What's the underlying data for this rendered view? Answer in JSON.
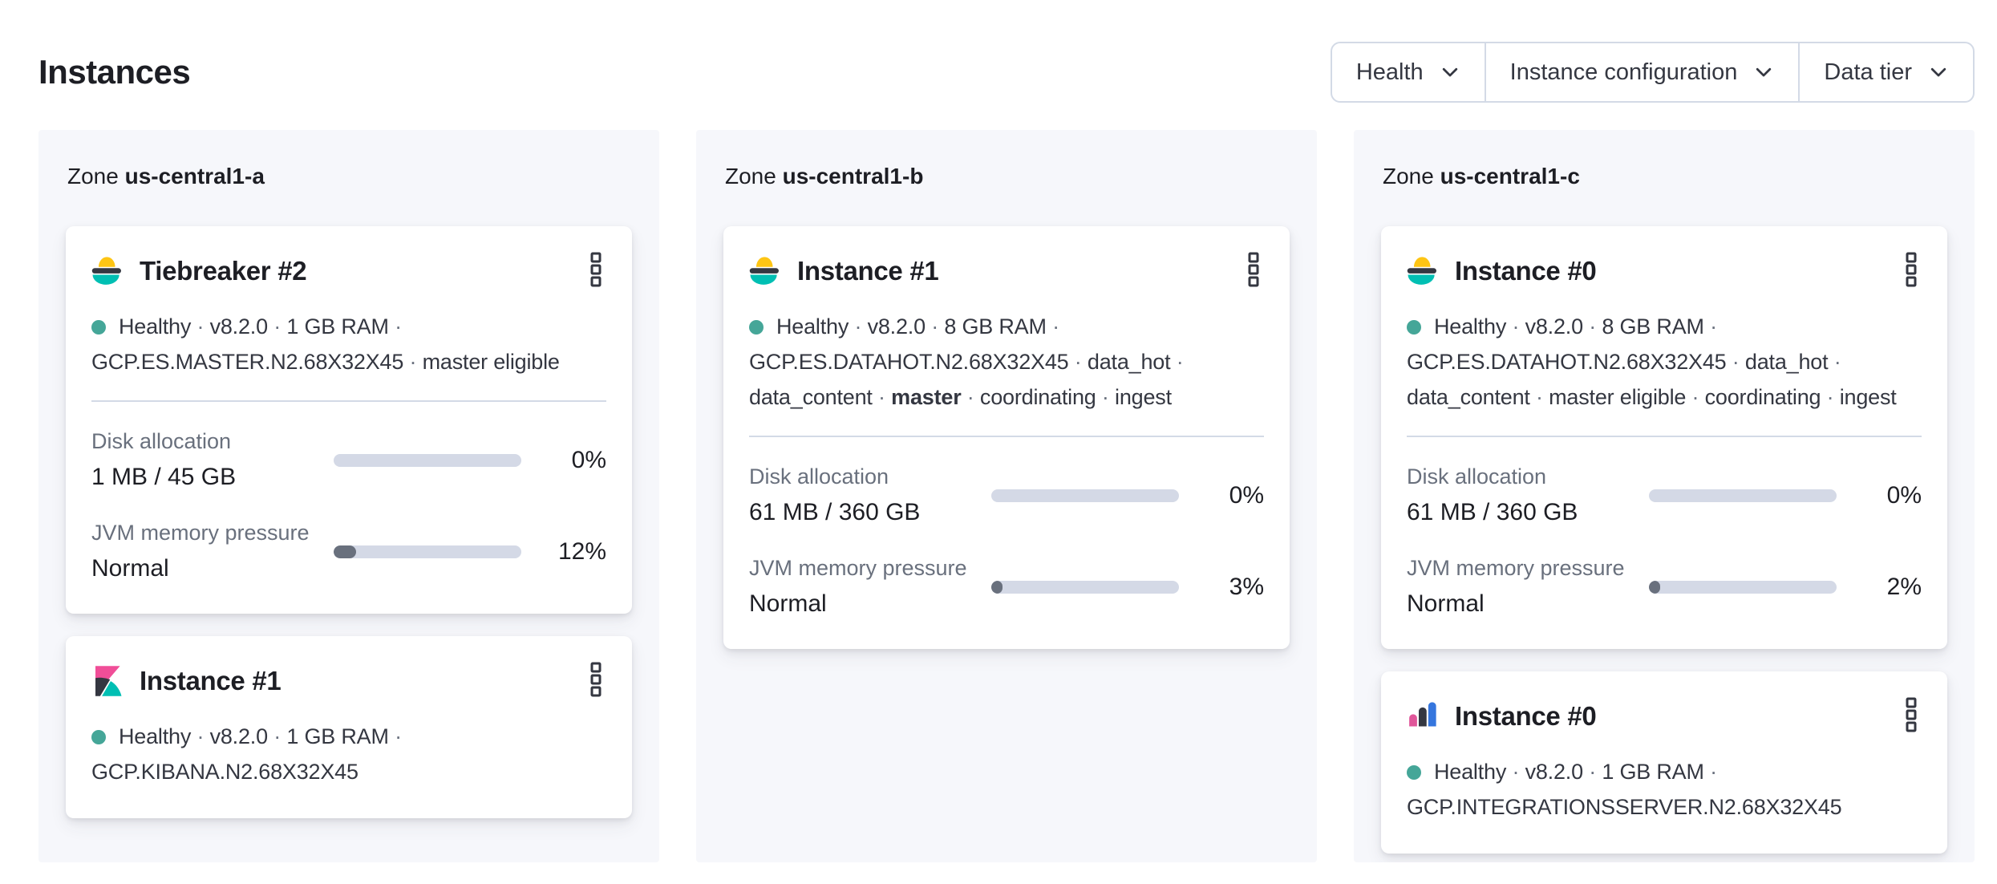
{
  "page": {
    "title": "Instances"
  },
  "filters": [
    {
      "label": "Health"
    },
    {
      "label": "Instance configuration"
    },
    {
      "label": "Data tier"
    }
  ],
  "zones": [
    {
      "label": "Zone",
      "name": "us-central1-a",
      "cards": [
        {
          "logo": "elasticsearch-logo",
          "title": "Tiebreaker #2",
          "status": [
            {
              "t": "Healthy"
            },
            {
              "t": "v8.2.0"
            },
            {
              "t": "1 GB RAM"
            },
            {
              "t": "GCP.ES.MASTER.N2.68X32X45"
            },
            {
              "t": "master eligible"
            }
          ],
          "metrics": [
            {
              "label": "Disk allocation",
              "value": "1 MB / 45 GB",
              "percent_label": "0%",
              "fill_pct": 0
            },
            {
              "label": "JVM memory pressure",
              "value": "Normal",
              "percent_label": "12%",
              "fill_pct": 12
            }
          ]
        },
        {
          "logo": "kibana-logo",
          "title": "Instance #1",
          "status": [
            {
              "t": "Healthy"
            },
            {
              "t": "v8.2.0"
            },
            {
              "t": "1 GB RAM"
            },
            {
              "t": "GCP.KIBANA.N2.68X32X45"
            }
          ],
          "metrics": []
        }
      ]
    },
    {
      "label": "Zone",
      "name": "us-central1-b",
      "cards": [
        {
          "logo": "elasticsearch-logo",
          "title": "Instance #1",
          "status": [
            {
              "t": "Healthy"
            },
            {
              "t": "v8.2.0"
            },
            {
              "t": "8 GB RAM"
            },
            {
              "t": "GCP.ES.DATAHOT.N2.68X32X45"
            },
            {
              "t": "data_hot"
            },
            {
              "t": "data_content"
            },
            {
              "t": "master",
              "b": true
            },
            {
              "t": "coordinating"
            },
            {
              "t": "ingest"
            }
          ],
          "metrics": [
            {
              "label": "Disk allocation",
              "value": "61 MB / 360 GB",
              "percent_label": "0%",
              "fill_pct": 0
            },
            {
              "label": "JVM memory pressure",
              "value": "Normal",
              "percent_label": "3%",
              "fill_pct": 3
            }
          ]
        }
      ]
    },
    {
      "label": "Zone",
      "name": "us-central1-c",
      "cards": [
        {
          "logo": "elasticsearch-logo",
          "title": "Instance #0",
          "status": [
            {
              "t": "Healthy"
            },
            {
              "t": "v8.2.0"
            },
            {
              "t": "8 GB RAM"
            },
            {
              "t": "GCP.ES.DATAHOT.N2.68X32X45"
            },
            {
              "t": "data_hot"
            },
            {
              "t": "data_content"
            },
            {
              "t": "master eligible"
            },
            {
              "t": "coordinating"
            },
            {
              "t": "ingest"
            }
          ],
          "metrics": [
            {
              "label": "Disk allocation",
              "value": "61 MB / 360 GB",
              "percent_label": "0%",
              "fill_pct": 0
            },
            {
              "label": "JVM memory pressure",
              "value": "Normal",
              "percent_label": "2%",
              "fill_pct": 2
            }
          ]
        },
        {
          "logo": "integrations-server-logo",
          "title": "Instance #0",
          "status": [
            {
              "t": "Healthy"
            },
            {
              "t": "v8.2.0"
            },
            {
              "t": "1 GB RAM"
            },
            {
              "t": "GCP.INTEGRATIONSSERVER.N2.68X32X45"
            }
          ],
          "metrics": []
        }
      ]
    }
  ],
  "colors": {
    "health-dot": "#45a698",
    "bar-track": "#d4d9e6",
    "bar-fill": "#69707d",
    "elastic-yellow": "#fec514",
    "elastic-dark": "#343741",
    "elastic-teal": "#00bfb3",
    "kibana-pink": "#f04e98",
    "integrations-pink": "#e0569a",
    "integrations-blue": "#3576de",
    "text-dark": "#343741",
    "text-subdued": "#69707d",
    "panel-bg": "#f6f7fb",
    "border": "#d3dae6"
  }
}
